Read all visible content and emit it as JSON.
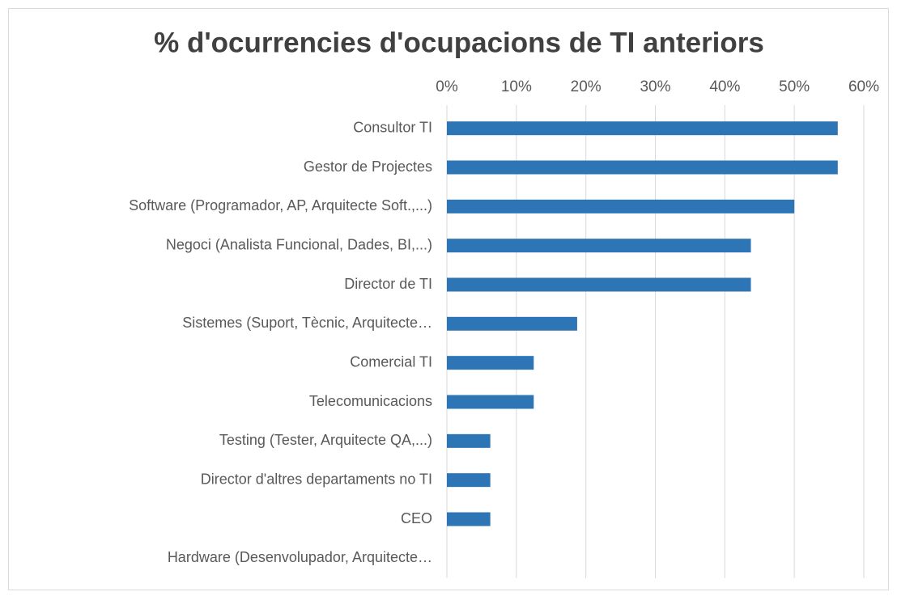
{
  "chart_data": {
    "type": "bar",
    "orientation": "horizontal",
    "title": "% d'ocurrencies d'ocupacions de TI anteriors",
    "categories": [
      "Consultor TI",
      "Gestor de Projectes",
      "Software (Programador, AP, Arquitecte Soft.,...)",
      "Negoci (Analista Funcional, Dades, BI,...)",
      "Director de TI",
      "Sistemes (Suport, Tècnic, Arquitecte…",
      "Comercial TI",
      "Telecomunicacions",
      "Testing (Tester, Arquitecte QA,...)",
      "Director d'altres departaments no TI",
      "CEO",
      "Hardware (Desenvolupador, Arquitecte…"
    ],
    "values": [
      56.25,
      56.25,
      50,
      43.75,
      43.75,
      18.75,
      12.5,
      12.5,
      6.25,
      6.25,
      6.25,
      0
    ],
    "color": "#2e75b6",
    "xlim": [
      0,
      60
    ],
    "xticks": [
      {
        "value": 0,
        "label": "0%"
      },
      {
        "value": 10,
        "label": "10%"
      },
      {
        "value": 20,
        "label": "20%"
      },
      {
        "value": 30,
        "label": "30%"
      },
      {
        "value": 40,
        "label": "40%"
      },
      {
        "value": 50,
        "label": "50%"
      },
      {
        "value": 60,
        "label": "60%"
      }
    ],
    "grid": true
  }
}
